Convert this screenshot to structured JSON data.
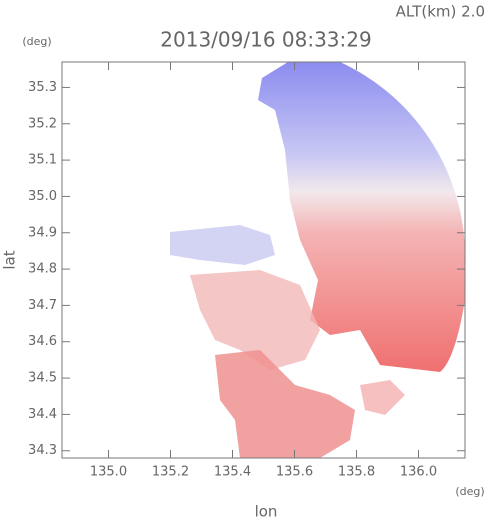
{
  "chart_data": {
    "type": "image",
    "title": "2013/09/16 08:33:29",
    "subtitle": "ALT(km) 2.0",
    "x_label": "lon",
    "y_label": "lat",
    "x_unit": "(deg)",
    "y_unit": "(deg)",
    "xlim": [
      134.85,
      136.15
    ],
    "ylim": [
      34.28,
      35.37
    ],
    "xticks": [
      {
        "value": 135,
        "label": "135.0"
      },
      135.2,
      135.4,
      135.6,
      135.8,
      {
        "value": 136,
        "label": "136.0"
      }
    ],
    "yticks": [
      34.3,
      34.4,
      34.5,
      34.6,
      34.7,
      34.8,
      34.9,
      {
        "value": 35,
        "label": "35.0"
      },
      35.1,
      35.2,
      35.3
    ]
  }
}
